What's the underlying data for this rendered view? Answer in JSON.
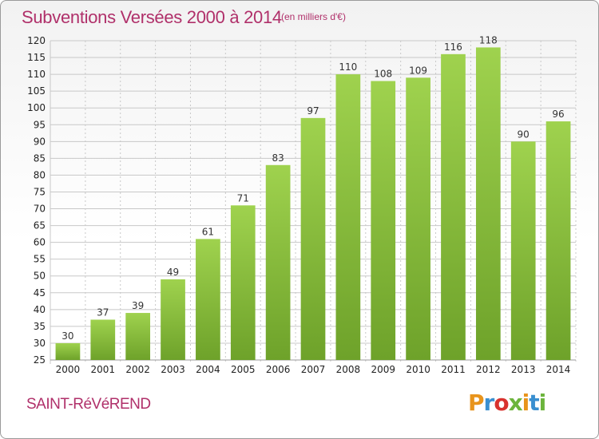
{
  "header": {
    "title": "Subventions Versées 2000 à 2014",
    "subtitle": "(en milliers d'€)"
  },
  "footer": {
    "commune": "SAINT-RéVéREND",
    "logo": "Proxiti",
    "logo_colors": [
      "#e8941c",
      "#3a8fd0",
      "#d8322e",
      "#6cb43c",
      "#e8941c",
      "#3a8fd0",
      "#6cb43c"
    ]
  },
  "colors": {
    "bar_light": "#9fd24e",
    "bar_dark": "#6ea22a",
    "grid": "#c8c8c8",
    "accent": "#b0306a"
  },
  "chart_data": {
    "type": "bar",
    "title": "Subventions Versées 2000 à 2014",
    "subtitle": "(en milliers d'€)",
    "xlabel": "",
    "ylabel": "",
    "categories": [
      "2000",
      "2001",
      "2002",
      "2003",
      "2004",
      "2005",
      "2006",
      "2007",
      "2008",
      "2009",
      "2010",
      "2011",
      "2012",
      "2013",
      "2014"
    ],
    "values": [
      30,
      37,
      39,
      49,
      61,
      71,
      83,
      97,
      110,
      108,
      109,
      116,
      118,
      90,
      96
    ],
    "ylim": [
      25,
      120
    ],
    "yticks": [
      25,
      30,
      35,
      40,
      45,
      50,
      55,
      60,
      65,
      70,
      75,
      80,
      85,
      90,
      95,
      100,
      105,
      110,
      115,
      120
    ],
    "grid": true,
    "data_labels": true
  }
}
